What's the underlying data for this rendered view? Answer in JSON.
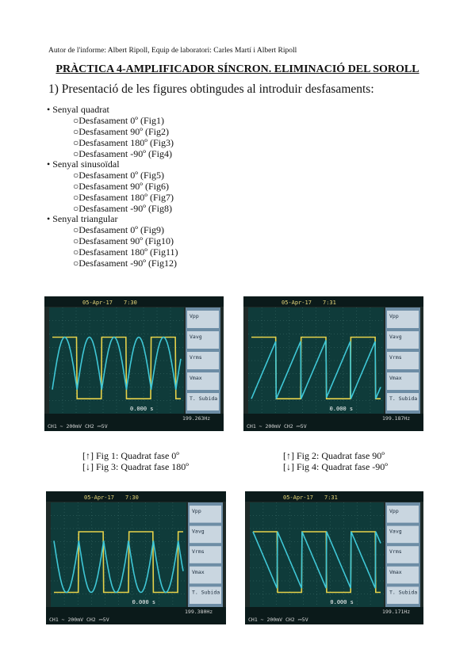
{
  "author": "Autor de l'informe: Albert Ripoll, Equip de laboratori: Carles Martí i Albert Ripoll",
  "title": "PRÀCTICA 4-AMPLIFICADOR SÍNCRON. ELIMINACIÓ DEL SOROLL",
  "section": "1) Presentació de les figures obtingudes al introduir desfasaments:",
  "groups": [
    {
      "label": "• Senyal quadrat",
      "items": [
        "○Desfasament 0º (Fig1)",
        "○Desfasament 90º (Fig2)",
        "○Desfasament 180º (Fig3)",
        "○Desfasament -90º (Fig4)"
      ]
    },
    {
      "label": "• Senyal sinusoïdal",
      "items": [
        "○Desfasament 0º (Fig5)",
        "○Desfasament 90º (Fig6)",
        "○Desfasament 180º (Fig7)",
        "○Desfasament -90º (Fig8)"
      ]
    },
    {
      "label": "• Senyal triangular",
      "items": [
        "○Desfasament 0º (Fig9)",
        "○Desfasament 90º (Fig10)",
        "○Desfasament 180º (Fig11)",
        "○Desfasament -90º (Fig12)"
      ]
    }
  ],
  "captions": {
    "left_1": "[↑] Fig 1: Quadrat fase 0º",
    "left_2": "[↓] Fig 3: Quadrat fase 180º",
    "right_1": "[↑] Fig 2: Quadrat fase 90º",
    "right_2": "[↓] Fig 4: Quadrat fase -90º"
  },
  "scopes": [
    {
      "date": "05-Apr-17",
      "time": "7:30",
      "freq": "199.263Hz",
      "trig": "0.000 s",
      "ch1": "CH1 ∼ 200mV",
      "ch2": "CH2 ⎓5V",
      "wave": "fig1"
    },
    {
      "date": "05-Apr-17",
      "time": "7:31",
      "freq": "199.187Hz",
      "trig": "0.000 s",
      "ch1": "CH1 ∼ 200mV",
      "ch2": "CH2 ⎓5V",
      "wave": "fig2"
    },
    {
      "date": "05-Apr-17",
      "time": "7:30",
      "freq": "199.380Hz",
      "trig": "0.000 s",
      "ch1": "CH1 ∼ 200mV",
      "ch2": "CH2 ⎓5V",
      "wave": "fig3"
    },
    {
      "date": "05-Apr-17",
      "time": "7:31",
      "freq": "199.171Hz",
      "trig": "0.000 s",
      "ch1": "CH1 ∼ 200mV",
      "ch2": "CH2 ⎓5V",
      "wave": "fig4"
    }
  ],
  "scope_menu": [
    "Vpp",
    "Vavg",
    "Vrms",
    "Vmax",
    "T. Subida"
  ]
}
